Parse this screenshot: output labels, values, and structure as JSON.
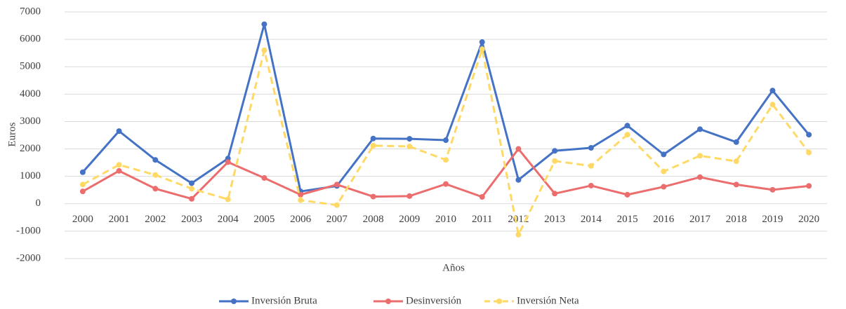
{
  "chart_data": {
    "type": "line",
    "x_label": "Años",
    "y_label": "Euros",
    "categories": [
      "2000",
      "2001",
      "2002",
      "2003",
      "2004",
      "2005",
      "2006",
      "2007",
      "2008",
      "2009",
      "2010",
      "2011",
      "2012",
      "2013",
      "2014",
      "2015",
      "2016",
      "2017",
      "2018",
      "2019",
      "2020"
    ],
    "series": [
      {
        "name": "Inversión Bruta",
        "color": "#4472c4",
        "dashed": false,
        "values": [
          1150,
          2650,
          1600,
          750,
          1650,
          6550,
          450,
          650,
          2380,
          2370,
          2320,
          5900,
          870,
          1930,
          2040,
          2850,
          1800,
          2720,
          2250,
          4130,
          2520
        ]
      },
      {
        "name": "Desinversión",
        "color": "#ec6d6d",
        "dashed": false,
        "values": [
          450,
          1200,
          550,
          180,
          1520,
          940,
          330,
          700,
          260,
          280,
          720,
          250,
          2000,
          370,
          660,
          330,
          620,
          970,
          700,
          510,
          650
        ]
      },
      {
        "name": "Inversión Neta",
        "color": "#ffd966",
        "dashed": true,
        "values": [
          700,
          1420,
          1050,
          550,
          160,
          5600,
          130,
          -50,
          2120,
          2090,
          1600,
          5640,
          -1130,
          1560,
          1380,
          2520,
          1180,
          1750,
          1550,
          3620,
          1870
        ]
      }
    ],
    "ylim": [
      -2000,
      7000
    ],
    "yticks": [
      -2000,
      -1000,
      0,
      1000,
      2000,
      3000,
      4000,
      5000,
      6000,
      7000
    ],
    "grid": true,
    "legend": "bottom"
  }
}
